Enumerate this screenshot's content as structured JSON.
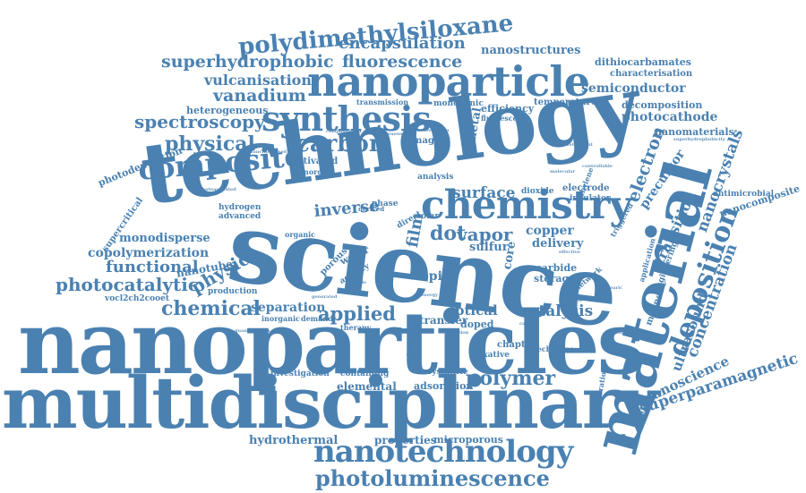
{
  "colors": {
    "word": "#4a81b1",
    "background": "#ffffff"
  },
  "words": {
    "technology": "technology",
    "science": "science",
    "nanoparticles": "nanoparticles",
    "multidisciplinary": "multidisciplinary",
    "material": "material",
    "nanoparticle": "nanoparticle",
    "chemistry": "chemistry",
    "synthesis": "synthesis",
    "composite": "composite",
    "nanotechnology": "nanotechnology",
    "polydimethylsiloxane": "polydimethylsiloxane",
    "encapsulation": "encapsulation",
    "superhydrophobic": "superhydrophobic",
    "fluorescence": "fluorescence",
    "nanostructures": "nanostructures",
    "dithiocarbamates": "dithiocarbamates",
    "characterisation": "characterisation",
    "vulcanisation": "vulcanisation",
    "semiconductor": "semiconductor",
    "vanadium": "vanadium",
    "spectroscopy": "spectroscopy",
    "heterogeneous": "heterogeneous",
    "physical": "physical",
    "carbon": "carbon",
    "photodeposition": "photodeposition",
    "decomposition": "decomposition",
    "photocathode": "photocathode",
    "nanomaterials": "nanomaterials",
    "temperature": "temperature",
    "efficiency": "efficiency",
    "fluorescent": "fluorescent",
    "monoclinic": "monoclinic",
    "transmission": "transmission",
    "metal": "metal",
    "electron": "electron",
    "surface": "surface",
    "precursor": "precursor",
    "nanocrystals": "nanocrystals",
    "antimicrobial": "antimicrobial",
    "nanocomposite": "nanocomposite",
    "transition": "transition",
    "deposition": "deposition",
    "concentration": "concentration",
    "ultrasound": "ultrasound",
    "nanoscience": "nanoscience",
    "superparamagnetic": "superparamagnetic",
    "supercritical": "supercritical",
    "monodisperse": "monodisperse",
    "copolymerization": "copolymerization",
    "functional": "functional",
    "photocatalytic": "photocatalytic",
    "physic": "physic",
    "chemical": "chemical",
    "vocl2ch2cooet": "vocl2ch2cooet",
    "separation": "separation",
    "applied": "applied",
    "optical": "optical",
    "catalysis": "catalysis",
    "polymer": "polymer",
    "investigation": "investigation",
    "elemental": "elemental",
    "containing": "containing",
    "adsorption": "adsorption",
    "crystallite": "crystallite",
    "hydrothermal": "hydrothermal",
    "properties": "properties",
    "microporous": "microporous",
    "photoluminescence": "photoluminescence",
    "inverse": "inverse",
    "vapor": "vapor",
    "dot": "dot",
    "film": "film",
    "topic": "topic",
    "copper": "copper",
    "delivery": "delivery",
    "carbide": "carbide",
    "storage": "storage",
    "sulfur": "sulfur",
    "doped": "doped",
    "transfer": "transfer",
    "nanotube": "nanotube",
    "production": "production",
    "hydrogen": "hydrogen",
    "advanced": "advanced",
    "activated": "activated",
    "nanorods": "nanorods",
    "imaging": "imaging",
    "analysis": "analysis",
    "dioxide": "dioxide",
    "electrode": "electrode",
    "insulator": "insulator",
    "phase": "phase",
    "organic": "organic",
    "water": "water",
    "porous": "porous",
    "core": "core",
    "magnetic": "magnetic",
    "engineering": "engineering",
    "application": "application",
    "triggered": "triggered",
    "network": "network",
    "chapter": "chapter",
    "laxative": "laxative",
    "system": "system",
    "technique": "technique",
    "incorporation": "incorporation",
    "inorganic": "inorganic",
    "demand": "demand",
    "therapy": "therapy",
    "derived": "derived",
    "solar": "solar",
    "direct": "direct",
    "methylene": "methylene",
    "nitride": "nitride",
    "energy": "energy",
    "activity": "activity",
    "photoactivated": "photoactivated",
    "quantification": "quantification",
    "development": "development",
    "superhydrophobicity": "superhydrophobicity",
    "functionalised": "functionalised",
    "continuous": "continuous",
    "compositional": "compositional",
    "photoelectron": "photoelectron",
    "controllable": "controllable",
    "molecular": "molecular",
    "effective": "effective",
    "generated": "generated",
    "reaction": "reaction",
    "antibacterial": "antibacterial",
    "carrier": "carrier",
    "batterie": "batterie",
    "stearic": "stearic"
  }
}
